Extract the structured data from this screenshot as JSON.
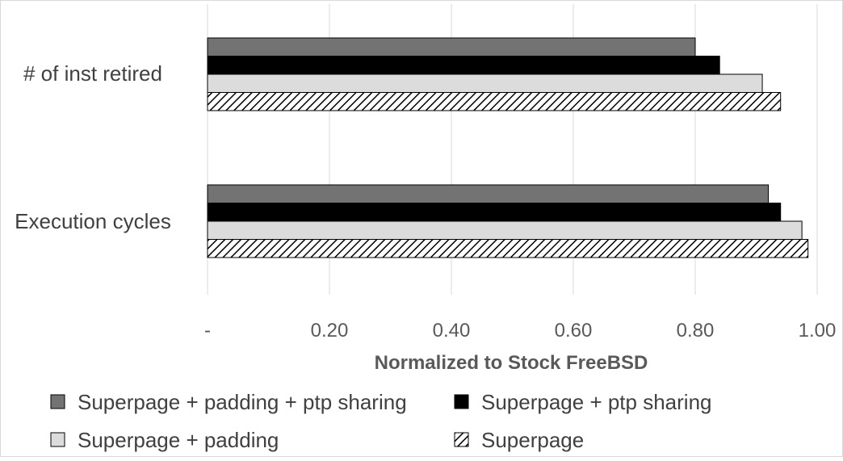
{
  "chart_data": {
    "type": "bar",
    "orientation": "horizontal",
    "categories": [
      "# of inst retired",
      "Execution cycles"
    ],
    "series": [
      {
        "name": "Superpage + padding + ptp sharing",
        "values": [
          0.8,
          0.92
        ],
        "color": "#737373",
        "pattern": "solid"
      },
      {
        "name": "Superpage + ptp sharing",
        "values": [
          0.84,
          0.94
        ],
        "color": "#000000",
        "pattern": "solid"
      },
      {
        "name": "Superpage + padding",
        "values": [
          0.91,
          0.975
        ],
        "color": "#dcdcdc",
        "pattern": "solid"
      },
      {
        "name": "Superpage",
        "values": [
          0.94,
          0.985
        ],
        "color": "#ffffff",
        "pattern": "diagonal-hatch"
      }
    ],
    "x_ticks": [
      "-",
      "0.20",
      "0.40",
      "0.60",
      "0.80",
      "1.00"
    ],
    "xlim": [
      0,
      1.0
    ],
    "xlabel": "Normalized to Stock FreeBSD",
    "ylabel": "",
    "grid": "vertical",
    "legend_position": "bottom"
  }
}
